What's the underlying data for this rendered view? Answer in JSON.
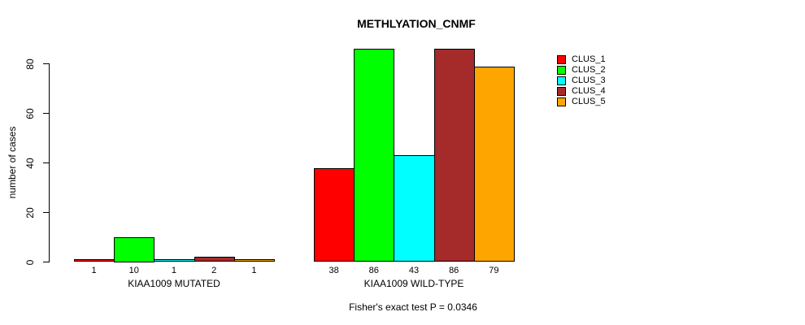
{
  "chart_data": {
    "type": "bar",
    "title": "METHLYATION_CNMF",
    "ylabel": "number of cases",
    "xlabel": "",
    "ylim": [
      0,
      86
    ],
    "yticks": [
      0,
      20,
      40,
      60,
      80
    ],
    "grid": false,
    "legend_position": "right",
    "categories": [
      "KIAA1009 MUTATED",
      "KIAA1009 WILD-TYPE"
    ],
    "series": [
      {
        "name": "CLUS_1",
        "color": "#FF0000",
        "values": [
          1,
          38
        ]
      },
      {
        "name": "CLUS_2",
        "color": "#00FF00",
        "values": [
          10,
          86
        ]
      },
      {
        "name": "CLUS_3",
        "color": "#00FFFF",
        "values": [
          1,
          43
        ]
      },
      {
        "name": "CLUS_4",
        "color": "#A52A2A",
        "values": [
          2,
          86
        ]
      },
      {
        "name": "CLUS_5",
        "color": "#FFA500",
        "values": [
          1,
          79
        ]
      }
    ],
    "bar_value_labels": [
      [
        "1",
        "10",
        "1",
        "2",
        "1"
      ],
      [
        "38",
        "86",
        "43",
        "86",
        "79"
      ]
    ],
    "note": "Fisher's exact test P = 0.0346",
    "colors": {
      "background": "#FFFFFF",
      "axis": "#000000",
      "bar_border": "#000000",
      "text": "#000000"
    }
  }
}
